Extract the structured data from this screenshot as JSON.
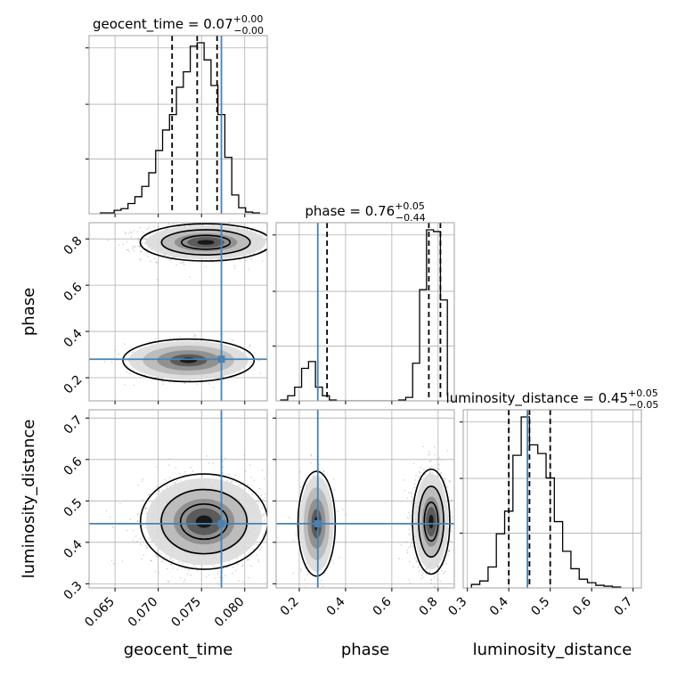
{
  "chart_data": {
    "type": "corner",
    "parameters": [
      "geocent_time",
      "phase",
      "luminosity_distance"
    ],
    "axis_labels": {
      "geocent_time": "geocent_time",
      "phase": "phase",
      "luminosity_distance": "luminosity_distance"
    },
    "ranges": {
      "geocent_time": [
        0.062,
        0.0826
      ],
      "phase": [
        0.1,
        0.87
      ],
      "luminosity_distance": [
        0.29,
        0.72
      ]
    },
    "ticks": {
      "geocent_time": [
        "0.065",
        "0.070",
        "0.075",
        "0.080"
      ],
      "phase": [
        "0.2",
        "0.4",
        "0.6",
        "0.8"
      ],
      "luminosity_distance": [
        "0.3",
        "0.4",
        "0.5",
        "0.6",
        "0.7"
      ]
    },
    "truths": {
      "geocent_time": 0.0773,
      "phase": 0.28,
      "luminosity_distance": 0.445
    },
    "quantiles": {
      "geocent_time": [
        0.0716,
        0.0745,
        0.0768
      ],
      "phase": [
        0.32,
        0.76,
        0.81
      ],
      "luminosity_distance": [
        0.4,
        0.45,
        0.5
      ]
    },
    "summaries": {
      "geocent_time": {
        "name": "geocent_time",
        "median": "0.07",
        "plus": "+0.00",
        "minus": "−0.00"
      },
      "phase": {
        "name": "phase",
        "median": "0.76",
        "plus": "+0.05",
        "minus": "−0.44"
      },
      "luminosity_distance": {
        "name": "luminosity_distance",
        "median": "0.45",
        "plus": "+0.05",
        "minus": "−0.05"
      }
    },
    "histograms": {
      "geocent_time": {
        "edges": [
          0.0633,
          0.0641,
          0.0649,
          0.0657,
          0.0665,
          0.0673,
          0.0681,
          0.0689,
          0.0697,
          0.0705,
          0.0713,
          0.0721,
          0.0729,
          0.0737,
          0.0745,
          0.0753,
          0.0761,
          0.0769,
          0.0777,
          0.0785,
          0.0793,
          0.0801,
          0.0809,
          0.0817
        ],
        "counts": [
          0.005,
          0.005,
          0.02,
          0.03,
          0.06,
          0.1,
          0.16,
          0.24,
          0.37,
          0.49,
          0.58,
          0.74,
          0.83,
          0.98,
          1.0,
          0.9,
          0.75,
          0.58,
          0.33,
          0.11,
          0.035,
          0.01,
          0.005
        ]
      },
      "phase": {
        "edges": [
          0.12,
          0.15,
          0.18,
          0.21,
          0.24,
          0.27,
          0.3,
          0.33,
          0.36,
          0.39,
          0.42,
          0.45,
          0.48,
          0.51,
          0.54,
          0.57,
          0.6,
          0.63,
          0.66,
          0.69,
          0.72,
          0.75,
          0.78,
          0.81,
          0.84
        ],
        "counts": [
          0.005,
          0.03,
          0.08,
          0.19,
          0.23,
          0.08,
          0.03,
          0.005,
          0.0,
          0.0,
          0.0,
          0.0,
          0.0,
          0.0,
          0.0,
          0.0,
          0.0,
          0.005,
          0.02,
          0.22,
          0.65,
          1.0,
          0.99,
          0.59,
          0.03
        ]
      },
      "luminosity_distance": {
        "edges": [
          0.31,
          0.33,
          0.35,
          0.37,
          0.39,
          0.41,
          0.43,
          0.45,
          0.47,
          0.49,
          0.51,
          0.53,
          0.55,
          0.57,
          0.59,
          0.61,
          0.63,
          0.65,
          0.67
        ],
        "counts": [
          0.02,
          0.04,
          0.12,
          0.31,
          0.44,
          0.76,
          0.98,
          0.82,
          0.77,
          0.63,
          0.38,
          0.21,
          0.11,
          0.05,
          0.03,
          0.015,
          0.01,
          0.005
        ]
      }
    },
    "clusters": {
      "geocent_time|phase": [
        {
          "cx": 0.0755,
          "cy": 0.785,
          "sx": 0.0033,
          "sy": 0.035,
          "w": 0.74
        },
        {
          "cx": 0.0735,
          "cy": 0.275,
          "sx": 0.0033,
          "sy": 0.04,
          "w": 0.26
        }
      ],
      "geocent_time|luminosity_distance": [
        {
          "cx": 0.0753,
          "cy": 0.45,
          "sx": 0.0032,
          "sy": 0.05,
          "w": 1.0
        }
      ],
      "phase|luminosity_distance": [
        {
          "cx": 0.77,
          "cy": 0.45,
          "sx": 0.035,
          "sy": 0.055,
          "w": 0.74
        },
        {
          "cx": 0.275,
          "cy": 0.445,
          "sx": 0.035,
          "sy": 0.055,
          "w": 0.26
        }
      ]
    },
    "grid": true,
    "truth_color": "#4682b4",
    "line_color": "#000000",
    "point_color": "#9a9a9a"
  }
}
